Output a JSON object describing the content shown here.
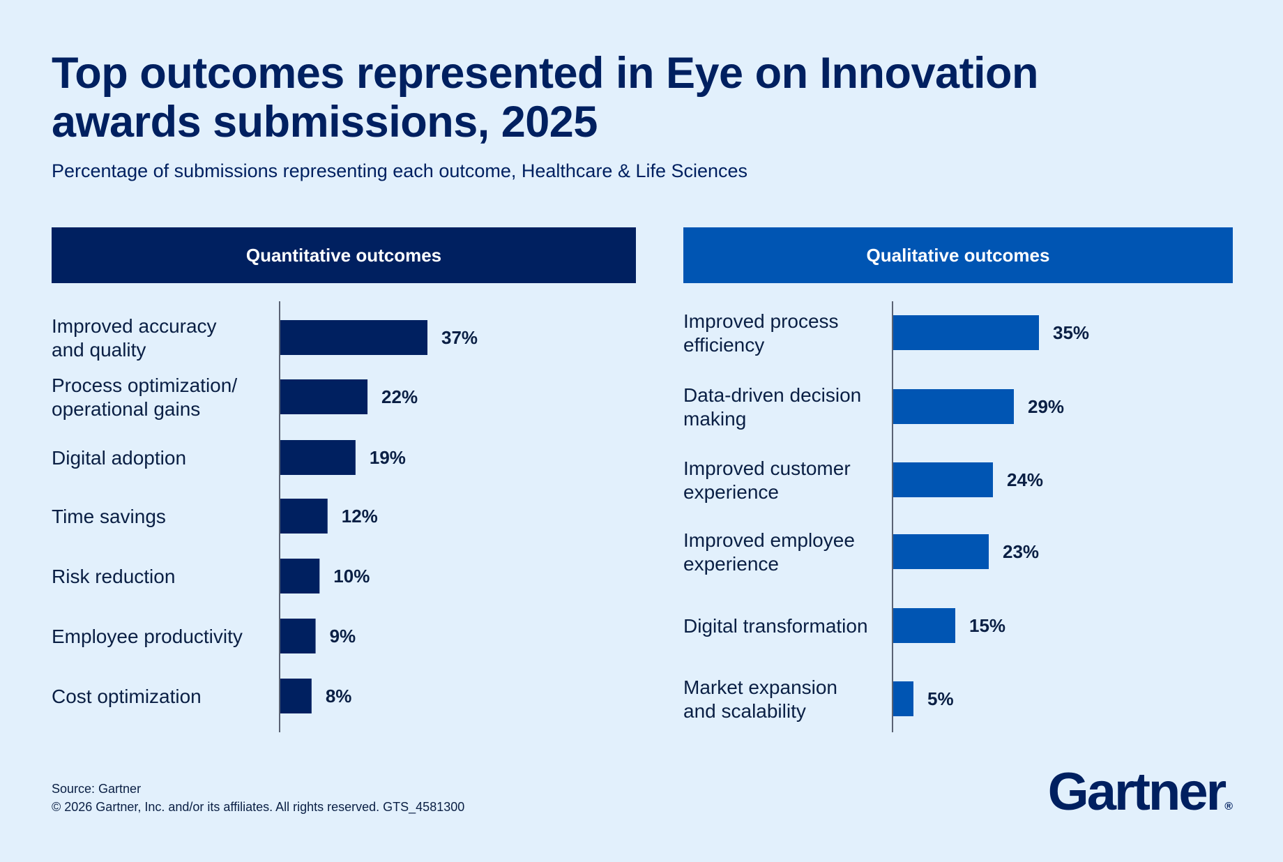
{
  "title_lines": [
    "Top outcomes represented in Eye on Innovation",
    "awards submissions, 2025"
  ],
  "subtitle": "Percentage of submissions representing each outcome, Healthcare & Life Sciences",
  "chart_data": [
    {
      "type": "bar",
      "orientation": "horizontal",
      "title": "Quantitative outcomes",
      "color": "#002060",
      "categories": [
        [
          "Improved accuracy",
          "and quality"
        ],
        [
          "Process optimization/",
          "operational gains"
        ],
        [
          "Digital adoption"
        ],
        [
          "Time savings"
        ],
        [
          "Risk reduction"
        ],
        [
          "Employee productivity"
        ],
        [
          "Cost optimization"
        ]
      ],
      "values": [
        37,
        22,
        19,
        12,
        10,
        9,
        8
      ],
      "value_labels": [
        "37%",
        "22%",
        "19%",
        "12%",
        "10%",
        "9%",
        "8%"
      ],
      "unit": "%",
      "xlim": [
        0,
        40
      ]
    },
    {
      "type": "bar",
      "orientation": "horizontal",
      "title": "Qualitative outcomes",
      "color": "#0055b3",
      "categories": [
        [
          "Improved process",
          "efficiency"
        ],
        [
          "Data-driven decision",
          "making"
        ],
        [
          "Improved customer",
          "experience"
        ],
        [
          "Improved employee",
          "experience"
        ],
        [
          "Digital transformation"
        ],
        [
          "Market expansion",
          "and scalability"
        ]
      ],
      "values": [
        35,
        29,
        24,
        23,
        15,
        5
      ],
      "value_labels": [
        "35%",
        "29%",
        "24%",
        "23%",
        "15%",
        "5%"
      ],
      "unit": "%",
      "xlim": [
        0,
        40
      ]
    }
  ],
  "footer": {
    "source": "Source: Gartner",
    "copyright": "© 2026 Gartner, Inc. and/or its affiliates. All rights reserved. GTS_4581300"
  },
  "logo": {
    "text": "Gartner",
    "mark": "®"
  }
}
